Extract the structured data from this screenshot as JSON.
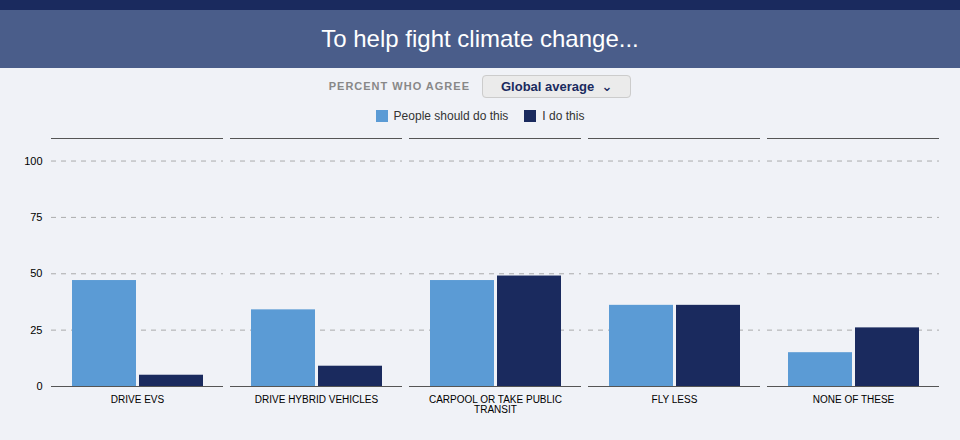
{
  "chart_data": {
    "type": "bar",
    "title": "To help fight climate change...",
    "subtitle": "PERCENT WHO AGREE",
    "annotations": [
      "Global average  ⌄"
    ],
    "categories": [
      "DRIVE EVS",
      "DRIVE HYBRID VEHICLES",
      "CARPOOL OR TAKE PUBLIC TRANSIT",
      "FLY LESS",
      "NONE OF THESE"
    ],
    "series": [
      {
        "name": "People should do this",
        "color": "#5b9bd5",
        "values": [
          47,
          34,
          47,
          36,
          15
        ]
      },
      {
        "name": "I do this",
        "color": "#1a2a5e",
        "values": [
          5,
          9,
          49,
          36,
          26
        ]
      }
    ],
    "ylim": [
      0,
      110
    ],
    "yticks": [
      0,
      25,
      50,
      75,
      100
    ],
    "grid": true,
    "legend": "top"
  }
}
